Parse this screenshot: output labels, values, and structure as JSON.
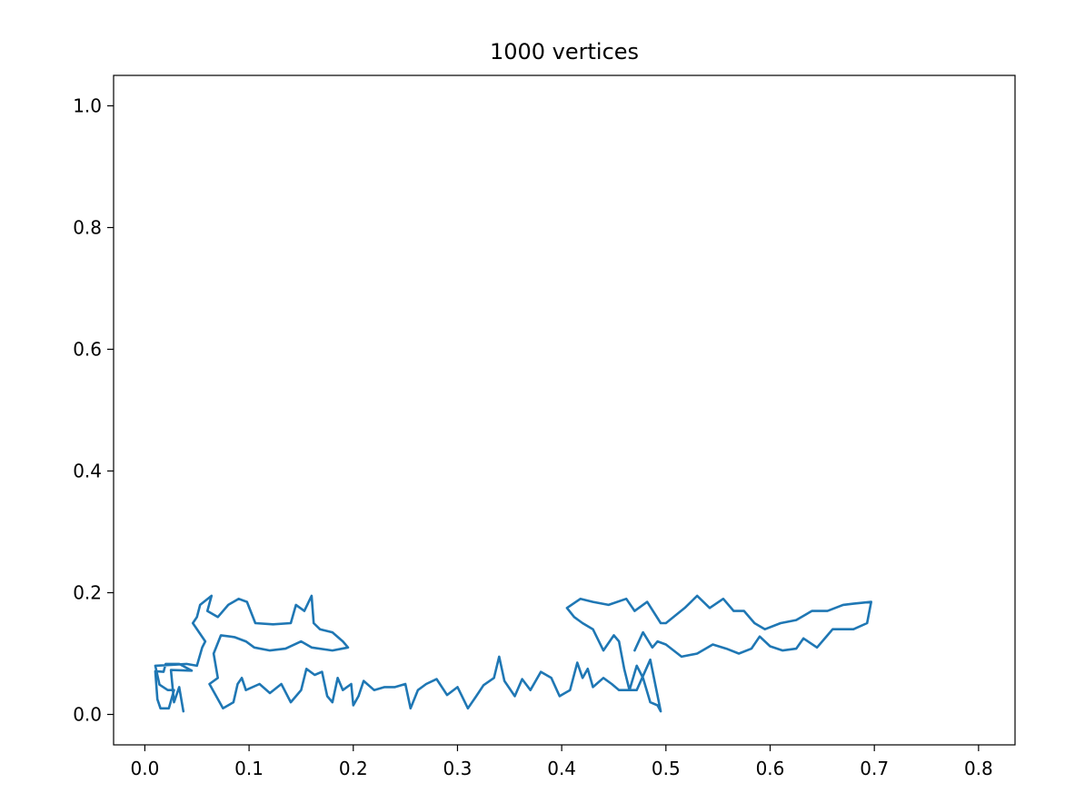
{
  "chart_data": {
    "type": "line",
    "title": "1000 vertices",
    "xlabel": "",
    "ylabel": "",
    "xlim": [
      -0.03,
      0.835
    ],
    "ylim": [
      -0.05,
      1.05
    ],
    "x_ticks": [
      0.0,
      0.1,
      0.2,
      0.3,
      0.4,
      0.5,
      0.6,
      0.7,
      0.8
    ],
    "x_tick_labels": [
      "0.0",
      "0.1",
      "0.2",
      "0.3",
      "0.4",
      "0.5",
      "0.6",
      "0.7",
      "0.8"
    ],
    "y_ticks": [
      0.0,
      0.2,
      0.4,
      0.6,
      0.8,
      1.0
    ],
    "y_tick_labels": [
      "0.0",
      "0.2",
      "0.4",
      "0.6",
      "0.8",
      "1.0"
    ],
    "grid": false,
    "line_color": "#1f77b4",
    "series": [
      {
        "name": "",
        "approx_vertices": [
          [
            0.037,
            0.005
          ],
          [
            0.033,
            0.045
          ],
          [
            0.028,
            0.02
          ],
          [
            0.025,
            0.073
          ],
          [
            0.045,
            0.072
          ],
          [
            0.033,
            0.083
          ],
          [
            0.02,
            0.083
          ],
          [
            0.018,
            0.07
          ],
          [
            0.01,
            0.071
          ],
          [
            0.012,
            0.025
          ],
          [
            0.015,
            0.01
          ],
          [
            0.023,
            0.01
          ],
          [
            0.028,
            0.04
          ],
          [
            0.022,
            0.04
          ],
          [
            0.014,
            0.049
          ],
          [
            0.01,
            0.08
          ],
          [
            0.04,
            0.083
          ],
          [
            0.05,
            0.08
          ],
          [
            0.055,
            0.11
          ],
          [
            0.058,
            0.12
          ],
          [
            0.046,
            0.15
          ],
          [
            0.05,
            0.16
          ],
          [
            0.053,
            0.18
          ],
          [
            0.064,
            0.195
          ],
          [
            0.06,
            0.17
          ],
          [
            0.07,
            0.16
          ],
          [
            0.08,
            0.18
          ],
          [
            0.09,
            0.19
          ],
          [
            0.098,
            0.185
          ],
          [
            0.106,
            0.15
          ],
          [
            0.123,
            0.148
          ],
          [
            0.14,
            0.15
          ],
          [
            0.145,
            0.18
          ],
          [
            0.153,
            0.17
          ],
          [
            0.16,
            0.195
          ],
          [
            0.162,
            0.15
          ],
          [
            0.168,
            0.14
          ],
          [
            0.18,
            0.135
          ],
          [
            0.19,
            0.12
          ],
          [
            0.195,
            0.11
          ],
          [
            0.18,
            0.105
          ],
          [
            0.16,
            0.11
          ],
          [
            0.15,
            0.12
          ],
          [
            0.135,
            0.108
          ],
          [
            0.12,
            0.105
          ],
          [
            0.105,
            0.11
          ],
          [
            0.097,
            0.12
          ],
          [
            0.086,
            0.127
          ],
          [
            0.073,
            0.13
          ],
          [
            0.066,
            0.1
          ],
          [
            0.07,
            0.06
          ],
          [
            0.062,
            0.05
          ],
          [
            0.075,
            0.01
          ],
          [
            0.085,
            0.02
          ],
          [
            0.089,
            0.05
          ],
          [
            0.093,
            0.06
          ],
          [
            0.097,
            0.04
          ],
          [
            0.11,
            0.05
          ],
          [
            0.12,
            0.035
          ],
          [
            0.131,
            0.05
          ],
          [
            0.14,
            0.02
          ],
          [
            0.15,
            0.04
          ],
          [
            0.155,
            0.075
          ],
          [
            0.163,
            0.065
          ],
          [
            0.17,
            0.07
          ],
          [
            0.175,
            0.03
          ],
          [
            0.18,
            0.02
          ],
          [
            0.185,
            0.06
          ],
          [
            0.19,
            0.04
          ],
          [
            0.198,
            0.05
          ],
          [
            0.2,
            0.015
          ],
          [
            0.205,
            0.03
          ],
          [
            0.21,
            0.055
          ],
          [
            0.22,
            0.04
          ],
          [
            0.23,
            0.045
          ],
          [
            0.24,
            0.045
          ],
          [
            0.25,
            0.05
          ],
          [
            0.255,
            0.01
          ],
          [
            0.262,
            0.04
          ],
          [
            0.27,
            0.05
          ],
          [
            0.28,
            0.058
          ],
          [
            0.29,
            0.032
          ],
          [
            0.3,
            0.045
          ],
          [
            0.31,
            0.01
          ],
          [
            0.318,
            0.03
          ],
          [
            0.325,
            0.048
          ],
          [
            0.335,
            0.06
          ],
          [
            0.34,
            0.095
          ],
          [
            0.345,
            0.055
          ],
          [
            0.355,
            0.03
          ],
          [
            0.362,
            0.058
          ],
          [
            0.37,
            0.04
          ],
          [
            0.38,
            0.07
          ],
          [
            0.39,
            0.06
          ],
          [
            0.398,
            0.03
          ],
          [
            0.408,
            0.04
          ],
          [
            0.415,
            0.085
          ],
          [
            0.42,
            0.06
          ],
          [
            0.425,
            0.075
          ],
          [
            0.43,
            0.045
          ],
          [
            0.44,
            0.06
          ],
          [
            0.448,
            0.05
          ],
          [
            0.455,
            0.04
          ],
          [
            0.465,
            0.04
          ],
          [
            0.472,
            0.04
          ],
          [
            0.485,
            0.09
          ],
          [
            0.495,
            0.005
          ],
          [
            0.492,
            0.015
          ],
          [
            0.485,
            0.02
          ],
          [
            0.478,
            0.06
          ],
          [
            0.472,
            0.08
          ],
          [
            0.465,
            0.04
          ],
          [
            0.46,
            0.075
          ],
          [
            0.455,
            0.12
          ],
          [
            0.45,
            0.13
          ],
          [
            0.44,
            0.105
          ],
          [
            0.43,
            0.14
          ],
          [
            0.42,
            0.15
          ],
          [
            0.412,
            0.16
          ],
          [
            0.405,
            0.175
          ],
          [
            0.418,
            0.19
          ],
          [
            0.43,
            0.185
          ],
          [
            0.445,
            0.18
          ],
          [
            0.462,
            0.19
          ],
          [
            0.47,
            0.17
          ],
          [
            0.482,
            0.185
          ],
          [
            0.495,
            0.15
          ],
          [
            0.5,
            0.15
          ],
          [
            0.518,
            0.175
          ],
          [
            0.53,
            0.195
          ],
          [
            0.542,
            0.175
          ],
          [
            0.555,
            0.19
          ],
          [
            0.565,
            0.17
          ],
          [
            0.575,
            0.17
          ],
          [
            0.585,
            0.15
          ],
          [
            0.595,
            0.14
          ],
          [
            0.61,
            0.15
          ],
          [
            0.625,
            0.155
          ],
          [
            0.64,
            0.17
          ],
          [
            0.655,
            0.17
          ],
          [
            0.67,
            0.18
          ],
          [
            0.68,
            0.182
          ],
          [
            0.697,
            0.185
          ],
          [
            0.693,
            0.15
          ],
          [
            0.68,
            0.14
          ],
          [
            0.66,
            0.14
          ],
          [
            0.655,
            0.13
          ],
          [
            0.645,
            0.11
          ],
          [
            0.632,
            0.125
          ],
          [
            0.625,
            0.108
          ],
          [
            0.612,
            0.105
          ],
          [
            0.6,
            0.112
          ],
          [
            0.59,
            0.128
          ],
          [
            0.582,
            0.108
          ],
          [
            0.57,
            0.1
          ],
          [
            0.558,
            0.108
          ],
          [
            0.545,
            0.115
          ],
          [
            0.53,
            0.1
          ],
          [
            0.515,
            0.095
          ],
          [
            0.5,
            0.115
          ],
          [
            0.492,
            0.12
          ],
          [
            0.487,
            0.11
          ],
          [
            0.478,
            0.135
          ],
          [
            0.47,
            0.105
          ]
        ]
      }
    ]
  }
}
